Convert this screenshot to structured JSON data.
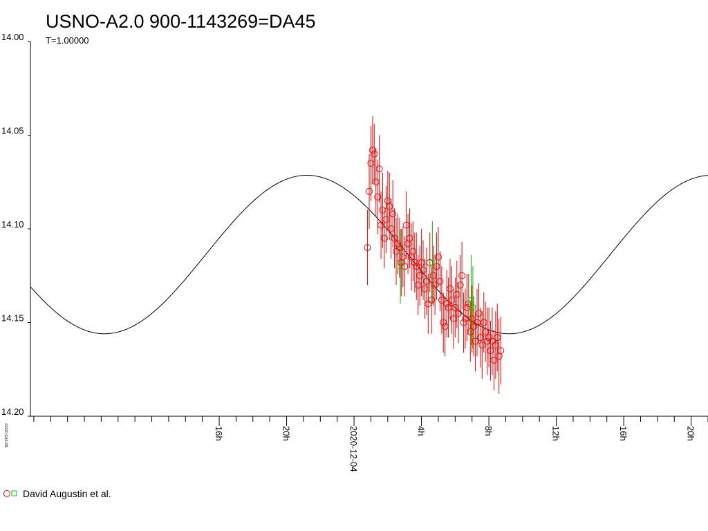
{
  "chart_data": {
    "type": "scatter",
    "title": "USNO-A2.0 900-1143269=DA45",
    "subtitle": "T=1.00000",
    "copyright": "©2020 GAS-RB",
    "ylim": [
      14.0,
      14.2
    ],
    "y_inverted": true,
    "y_ticks": [
      {
        "value": 14.0,
        "label": "14.00"
      },
      {
        "value": 14.05,
        "label": "14.05"
      },
      {
        "value": 14.1,
        "label": "14.10"
      },
      {
        "value": 14.15,
        "label": "14.15"
      },
      {
        "value": 14.2,
        "label": "14.20"
      }
    ],
    "xlim_hours": [
      -19.2,
      21.0
    ],
    "x_major_ticks": [
      {
        "hour": -8,
        "label": "16h"
      },
      {
        "hour": -4,
        "label": "20h"
      },
      {
        "hour": 0,
        "label": "2020-12-04"
      },
      {
        "hour": 4,
        "label": "4h"
      },
      {
        "hour": 8,
        "label": "8h"
      },
      {
        "hour": 12,
        "label": "12h"
      },
      {
        "hour": 16,
        "label": "16h"
      },
      {
        "hour": 20,
        "label": "20h"
      }
    ],
    "grid": false,
    "legend": {
      "placement": "bottom-left",
      "entries": [
        {
          "label": "David Augustin et al.",
          "markers": [
            "circle",
            "square"
          ],
          "colors": [
            "#ff0000",
            "#00cc00"
          ]
        }
      ]
    },
    "model_curve": {
      "name": "",
      "mean": 14.1137,
      "amplitude": 0.0423,
      "period_hours": 24.0,
      "max_bright_hour": -2.8,
      "color": "#000000"
    },
    "series": [
      {
        "name": "David Augustin et al.",
        "marker": "circle",
        "color": "#ff0000",
        "x_hours": [
          0.8,
          0.9,
          1.0,
          1.1,
          1.2,
          1.3,
          1.4,
          1.5,
          1.6,
          1.7,
          1.8,
          1.9,
          2.0,
          2.1,
          2.2,
          2.3,
          2.4,
          2.5,
          2.6,
          2.7,
          2.8,
          2.9,
          3.0,
          3.1,
          3.2,
          3.3,
          3.4,
          3.5,
          3.6,
          3.7,
          3.8,
          3.9,
          4.0,
          4.1,
          4.2,
          4.3,
          4.4,
          4.5,
          4.6,
          4.7,
          4.8,
          4.9,
          5.0,
          5.1,
          5.2,
          5.3,
          5.4,
          5.5,
          5.6,
          5.7,
          5.8,
          5.9,
          6.0,
          6.1,
          6.2,
          6.3,
          6.4,
          6.5,
          6.6,
          6.7,
          6.8,
          6.9,
          7.0,
          7.1,
          7.2,
          7.3,
          7.4,
          7.5,
          7.6,
          7.7,
          7.8,
          7.9,
          8.0,
          8.1,
          8.2,
          8.3,
          8.4,
          8.5,
          8.6,
          8.7
        ],
        "y": [
          14.11,
          14.08,
          14.065,
          14.058,
          14.06,
          14.075,
          14.083,
          14.068,
          14.098,
          14.09,
          14.105,
          14.095,
          14.085,
          14.088,
          14.1,
          14.092,
          14.105,
          14.112,
          14.108,
          14.11,
          14.118,
          14.115,
          14.12,
          14.098,
          14.108,
          14.105,
          14.115,
          14.112,
          14.118,
          14.12,
          14.13,
          14.125,
          14.118,
          14.122,
          14.132,
          14.128,
          14.14,
          14.118,
          14.138,
          14.125,
          14.13,
          14.12,
          14.115,
          14.128,
          14.138,
          14.15,
          14.152,
          14.14,
          14.142,
          14.132,
          14.138,
          14.148,
          14.142,
          14.135,
          14.145,
          14.13,
          14.125,
          14.15,
          14.148,
          14.142,
          14.14,
          14.155,
          14.148,
          14.152,
          14.16,
          14.15,
          14.145,
          14.158,
          14.162,
          14.15,
          14.155,
          14.16,
          14.158,
          14.165,
          14.16,
          14.17,
          14.162,
          14.158,
          14.168,
          14.165
        ],
        "yerr": [
          0.02,
          0.02,
          0.02,
          0.018,
          0.016,
          0.018,
          0.02,
          0.018,
          0.018,
          0.02,
          0.016,
          0.018,
          0.016,
          0.018,
          0.016,
          0.018,
          0.016,
          0.018,
          0.016,
          0.016,
          0.018,
          0.016,
          0.016,
          0.018,
          0.016,
          0.016,
          0.018,
          0.016,
          0.016,
          0.018,
          0.016,
          0.016,
          0.018,
          0.016,
          0.016,
          0.018,
          0.016,
          0.016,
          0.018,
          0.016,
          0.016,
          0.018,
          0.016,
          0.016,
          0.018,
          0.016,
          0.016,
          0.018,
          0.016,
          0.016,
          0.018,
          0.016,
          0.016,
          0.018,
          0.016,
          0.016,
          0.018,
          0.016,
          0.016,
          0.018,
          0.016,
          0.016,
          0.018,
          0.016,
          0.016,
          0.018,
          0.016,
          0.016,
          0.018,
          0.016,
          0.016,
          0.018,
          0.016,
          0.016,
          0.018,
          0.016,
          0.018,
          0.018,
          0.02,
          0.018
        ]
      },
      {
        "name": "David Augustin et al.",
        "marker": "square",
        "color": "#00cc00",
        "x_hours": [
          2.75,
          4.65,
          6.95,
          7.05
        ],
        "y": [
          14.12,
          14.118,
          14.138,
          14.142
        ],
        "yerr": [
          0.02,
          0.022,
          0.024,
          0.022
        ]
      }
    ]
  }
}
